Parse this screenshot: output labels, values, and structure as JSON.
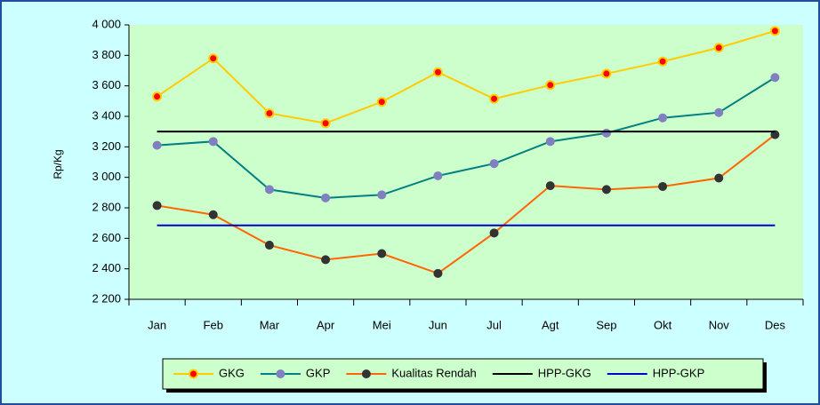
{
  "chart_data": {
    "type": "line",
    "y_label": "Rp/Kg",
    "categories": [
      "Jan",
      "Feb",
      "Mar",
      "Apr",
      "Mei",
      "Jun",
      "Jul",
      "Agt",
      "Sep",
      "Okt",
      "Nov",
      "Des"
    ],
    "series": [
      {
        "name": "GKG",
        "color": "#ffcc00",
        "marker": "#ff0000",
        "values": [
          3530,
          3780,
          3420,
          3355,
          3495,
          3690,
          3515,
          3605,
          3680,
          3760,
          3850,
          3960
        ]
      },
      {
        "name": "GKP",
        "color": "#008080",
        "marker": "#8080c0",
        "values": [
          3210,
          3235,
          2920,
          2865,
          2885,
          3010,
          3090,
          3235,
          3290,
          3390,
          3425,
          3655
        ]
      },
      {
        "name": "Kualitas Rendah",
        "color": "#ff6600",
        "marker": "#333333",
        "values": [
          2815,
          2755,
          2555,
          2460,
          2500,
          2370,
          2635,
          2945,
          2920,
          2940,
          2995,
          3280
        ]
      },
      {
        "name": "HPP-GKG",
        "color": "#000000",
        "values": [
          3300,
          3300,
          3300,
          3300,
          3300,
          3300,
          3300,
          3300,
          3300,
          3300,
          3300,
          3300
        ]
      },
      {
        "name": "HPP-GKP",
        "color": "#0000cc",
        "values": [
          2685,
          2685,
          2685,
          2685,
          2685,
          2685,
          2685,
          2685,
          2685,
          2685,
          2685,
          2685
        ]
      }
    ],
    "ylim": [
      2200,
      4000
    ],
    "yticks": [
      {
        "value": 2200,
        "label": "2 200"
      },
      {
        "value": 2400,
        "label": "2 400"
      },
      {
        "value": 2600,
        "label": "2 600"
      },
      {
        "value": 2800,
        "label": "2 800"
      },
      {
        "value": 3000,
        "label": "3 000"
      },
      {
        "value": 3200,
        "label": "3 200"
      },
      {
        "value": 3400,
        "label": "3 400"
      },
      {
        "value": 3600,
        "label": "3 600"
      },
      {
        "value": 3800,
        "label": "3 800"
      },
      {
        "value": 4000,
        "label": "4 000"
      }
    ],
    "legend": "bottom"
  }
}
